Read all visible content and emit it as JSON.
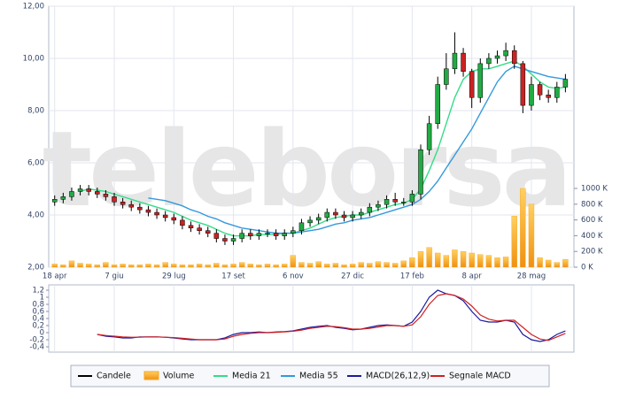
{
  "chart_data": [
    {
      "type": "candlestick",
      "watermark": "teleborsa",
      "xlim": [
        -0.7,
        61
      ],
      "xticks": [
        {
          "value": 0,
          "label": "18 apr"
        },
        {
          "value": 7,
          "label": "7 giu"
        },
        {
          "value": 14,
          "label": "29 lug"
        },
        {
          "value": 21,
          "label": "17 set"
        },
        {
          "value": 28,
          "label": "6 nov"
        },
        {
          "value": 35,
          "label": "27 dic"
        },
        {
          "value": 42,
          "label": "17 feb"
        },
        {
          "value": 49,
          "label": "8 apr"
        },
        {
          "value": 56,
          "label": "28 mag"
        }
      ],
      "ylim": [
        2,
        12
      ],
      "yticks": [
        {
          "value": 2,
          "label": "2,00"
        },
        {
          "value": 4,
          "label": "4,00"
        },
        {
          "value": 6,
          "label": "6,00"
        },
        {
          "value": 8,
          "label": "8,00"
        },
        {
          "value": 10,
          "label": "10,00"
        },
        {
          "value": 12,
          "label": "12,00"
        }
      ],
      "y2lim": [
        0,
        3315
      ],
      "y2ticks": [
        {
          "value": 0,
          "label": "0 K"
        },
        {
          "value": 200,
          "label": "200 K"
        },
        {
          "value": 400,
          "label": "400 K"
        },
        {
          "value": 600,
          "label": "600 K"
        },
        {
          "value": 800,
          "label": "800 K"
        },
        {
          "value": 1000,
          "label": "1000 K"
        }
      ],
      "grid": true,
      "candles": {
        "name": "Candele",
        "color": "#000000",
        "up_color": "#22aa44",
        "down_color": "#cc2222",
        "open": [
          4.5,
          4.6,
          4.7,
          4.9,
          5.0,
          4.9,
          4.8,
          4.7,
          4.5,
          4.4,
          4.3,
          4.2,
          4.1,
          4.0,
          3.9,
          3.8,
          3.6,
          3.5,
          3.4,
          3.3,
          3.1,
          3.0,
          3.1,
          3.3,
          3.2,
          3.3,
          3.3,
          3.2,
          3.3,
          3.4,
          3.7,
          3.8,
          3.9,
          4.1,
          4.0,
          3.9,
          4.0,
          4.1,
          4.3,
          4.4,
          4.6,
          4.5,
          4.5,
          4.8,
          6.5,
          7.5,
          9.0,
          9.6,
          10.2,
          9.5,
          8.5,
          9.8,
          10.0,
          10.1,
          10.3,
          9.8,
          8.2,
          9.0,
          8.6,
          8.5,
          8.9
        ],
        "high": [
          4.75,
          4.85,
          5.05,
          5.15,
          5.15,
          5.05,
          4.95,
          4.85,
          4.65,
          4.55,
          4.45,
          4.35,
          4.25,
          4.15,
          4.05,
          3.95,
          3.75,
          3.65,
          3.55,
          3.45,
          3.25,
          3.25,
          3.45,
          3.45,
          3.45,
          3.45,
          3.45,
          3.45,
          3.55,
          3.85,
          3.95,
          4.05,
          4.25,
          4.25,
          4.15,
          4.15,
          4.25,
          4.45,
          4.55,
          4.75,
          4.85,
          4.65,
          4.95,
          6.7,
          7.8,
          9.3,
          10.2,
          11.0,
          10.4,
          9.6,
          10.0,
          10.2,
          10.3,
          10.6,
          10.5,
          9.9,
          9.3,
          9.1,
          8.8,
          9.1,
          9.4
        ],
        "low": [
          4.35,
          4.45,
          4.55,
          4.75,
          4.75,
          4.65,
          4.55,
          4.35,
          4.25,
          4.15,
          4.05,
          3.95,
          3.85,
          3.75,
          3.65,
          3.45,
          3.35,
          3.25,
          3.15,
          2.95,
          2.85,
          2.85,
          2.95,
          3.05,
          3.05,
          3.15,
          3.05,
          3.05,
          3.15,
          3.25,
          3.55,
          3.65,
          3.75,
          3.85,
          3.75,
          3.75,
          3.85,
          3.95,
          4.15,
          4.25,
          4.35,
          4.35,
          4.35,
          4.6,
          6.3,
          7.3,
          8.8,
          9.4,
          9.3,
          8.1,
          8.3,
          9.6,
          9.8,
          9.9,
          9.6,
          7.9,
          8.0,
          8.4,
          8.3,
          8.3,
          8.7
        ],
        "close": [
          4.6,
          4.7,
          4.9,
          5.0,
          4.9,
          4.8,
          4.7,
          4.5,
          4.4,
          4.3,
          4.2,
          4.1,
          4.0,
          3.9,
          3.8,
          3.6,
          3.5,
          3.4,
          3.3,
          3.1,
          3.0,
          3.1,
          3.3,
          3.2,
          3.3,
          3.3,
          3.2,
          3.3,
          3.4,
          3.7,
          3.8,
          3.9,
          4.1,
          4.0,
          3.9,
          4.0,
          4.1,
          4.3,
          4.4,
          4.6,
          4.5,
          4.5,
          4.8,
          6.5,
          7.5,
          9.0,
          9.6,
          10.2,
          9.5,
          8.5,
          9.8,
          10.0,
          10.1,
          10.3,
          9.8,
          8.2,
          9.0,
          8.6,
          8.5,
          8.9,
          9.2
        ]
      },
      "series": [
        {
          "name": "Volume",
          "color": "#f5a623",
          "axis": "y2",
          "kind": "bar",
          "values": [
            40,
            30,
            80,
            50,
            40,
            30,
            60,
            30,
            40,
            30,
            30,
            40,
            30,
            60,
            40,
            30,
            30,
            40,
            30,
            50,
            30,
            40,
            60,
            40,
            30,
            40,
            30,
            40,
            150,
            60,
            50,
            70,
            40,
            50,
            30,
            40,
            60,
            50,
            70,
            60,
            50,
            80,
            120,
            200,
            250,
            180,
            150,
            220,
            200,
            180,
            160,
            150,
            120,
            130,
            650,
            1000,
            800,
            120,
            90,
            60,
            100
          ]
        },
        {
          "name": "Media 21",
          "color": "#33dd88",
          "kind": "line",
          "values": [
            null,
            null,
            null,
            4.9,
            5.0,
            4.95,
            4.9,
            4.8,
            4.7,
            4.6,
            4.5,
            4.4,
            4.3,
            4.2,
            4.1,
            3.95,
            3.8,
            3.7,
            3.6,
            3.45,
            3.3,
            3.2,
            3.2,
            3.2,
            3.25,
            3.25,
            3.25,
            3.3,
            3.3,
            3.4,
            3.5,
            3.65,
            3.8,
            3.9,
            3.95,
            4.0,
            4.0,
            4.1,
            4.2,
            4.3,
            4.4,
            4.45,
            4.6,
            5.0,
            5.7,
            6.5,
            7.5,
            8.5,
            9.2,
            9.5,
            9.6,
            9.6,
            9.7,
            9.8,
            9.9,
            9.7,
            9.4,
            9.1,
            8.9,
            8.85,
            8.9
          ]
        },
        {
          "name": "Media 55",
          "color": "#3399dd",
          "kind": "line",
          "values": [
            null,
            null,
            null,
            null,
            null,
            null,
            null,
            null,
            null,
            null,
            null,
            4.65,
            4.6,
            4.55,
            4.45,
            4.35,
            4.2,
            4.1,
            3.95,
            3.85,
            3.7,
            3.6,
            3.5,
            3.45,
            3.4,
            3.35,
            3.3,
            3.3,
            3.3,
            3.35,
            3.4,
            3.45,
            3.55,
            3.65,
            3.7,
            3.8,
            3.85,
            3.9,
            4.0,
            4.1,
            4.2,
            4.3,
            4.4,
            4.6,
            4.9,
            5.3,
            5.8,
            6.3,
            6.8,
            7.3,
            7.9,
            8.5,
            9.1,
            9.5,
            9.7,
            9.6,
            9.5,
            9.4,
            9.3,
            9.25,
            9.2
          ]
        }
      ]
    },
    {
      "type": "line",
      "xlim": [
        -0.7,
        61
      ],
      "ylim": [
        -0.55,
        1.3
      ],
      "yticks": [
        {
          "value": 1.2,
          "label": "1,2"
        },
        1,
        {
          "value": 0.8,
          "label": "0,8"
        },
        {
          "value": 0.6,
          "label": "0,6"
        },
        {
          "value": 0.4,
          "label": "0,4"
        },
        {
          "value": 0.2,
          "label": "0,2"
        },
        0,
        {
          "value": -0.2,
          "label": "-0,2"
        },
        {
          "value": -0.4,
          "label": "-0,4"
        }
      ],
      "series": [
        {
          "name": "MACD(26,12,9)",
          "color": "#1a1aa0",
          "values": [
            null,
            null,
            null,
            null,
            null,
            -0.05,
            -0.1,
            -0.12,
            -0.15,
            -0.15,
            -0.12,
            -0.12,
            -0.12,
            -0.13,
            -0.15,
            -0.18,
            -0.2,
            -0.2,
            -0.2,
            -0.2,
            -0.15,
            -0.05,
            0.0,
            0.0,
            0.02,
            0.0,
            0.02,
            0.03,
            0.05,
            0.1,
            0.15,
            0.18,
            0.2,
            0.15,
            0.12,
            0.08,
            0.1,
            0.15,
            0.2,
            0.22,
            0.2,
            0.18,
            0.3,
            0.6,
            1.0,
            1.2,
            1.1,
            1.05,
            0.9,
            0.6,
            0.35,
            0.3,
            0.3,
            0.35,
            0.3,
            -0.05,
            -0.2,
            -0.25,
            -0.2,
            -0.05,
            0.05
          ]
        },
        {
          "name": "Segnale MACD",
          "color": "#d02020",
          "values": [
            null,
            null,
            null,
            null,
            null,
            -0.05,
            -0.08,
            -0.1,
            -0.12,
            -0.13,
            -0.13,
            -0.12,
            -0.12,
            -0.13,
            -0.14,
            -0.16,
            -0.18,
            -0.2,
            -0.2,
            -0.2,
            -0.18,
            -0.1,
            -0.05,
            -0.02,
            0.0,
            0.0,
            0.01,
            0.02,
            0.04,
            0.07,
            0.12,
            0.15,
            0.18,
            0.17,
            0.14,
            0.1,
            0.1,
            0.12,
            0.16,
            0.2,
            0.2,
            0.18,
            0.22,
            0.45,
            0.8,
            1.05,
            1.1,
            1.05,
            0.95,
            0.75,
            0.5,
            0.38,
            0.33,
            0.35,
            0.35,
            0.15,
            -0.05,
            -0.18,
            -0.22,
            -0.12,
            -0.02
          ]
        }
      ]
    }
  ]
}
